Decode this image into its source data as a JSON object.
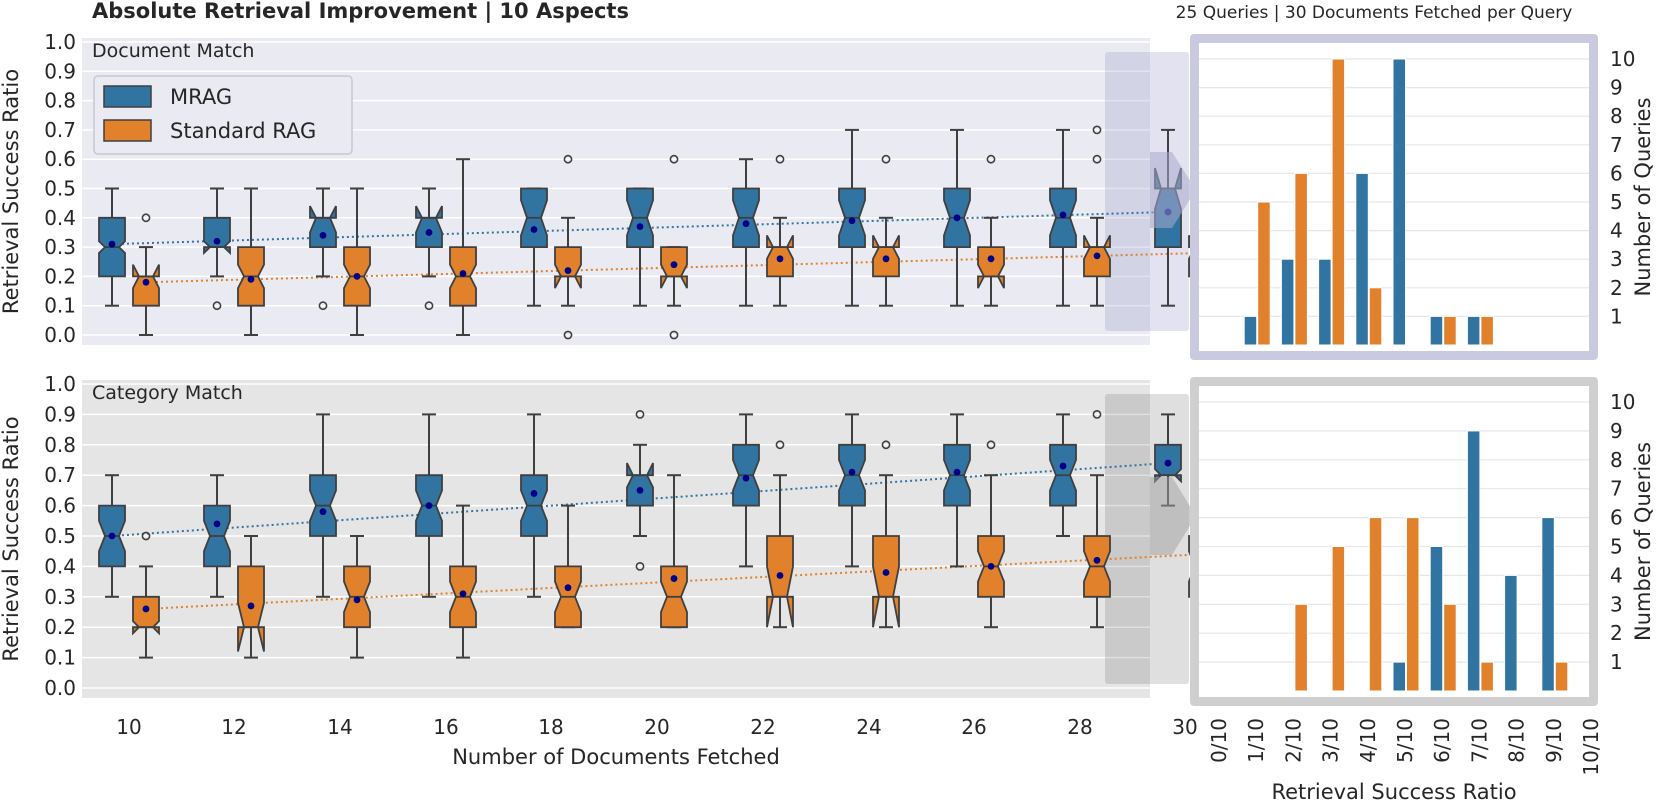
{
  "header": {
    "title": "Absolute Retrieval Improvement | 10 Aspects",
    "hist_title": "25 Queries | 30 Documents Fetched per Query"
  },
  "colors": {
    "mrag": "#3274a1",
    "standard": "#e1812c",
    "mean_marker": "#00008b",
    "panel_top": "#eaeaf2",
    "panel_bottom": "#e5e5e5"
  },
  "legend": {
    "mrag": "MRAG",
    "standard": "Standard RAG"
  },
  "chart_data": [
    {
      "type": "box",
      "panel": "Document Match",
      "ylabel": "Retrieval Success Ratio",
      "xlabel": "Number of Documents Fetched",
      "categories": [
        10,
        12,
        14,
        16,
        18,
        20,
        22,
        24,
        26,
        28,
        30
      ],
      "ylim": [
        0.0,
        1.0
      ],
      "yticks": [
        "0.0",
        "0.1",
        "0.2",
        "0.3",
        "0.4",
        "0.5",
        "0.6",
        "0.7",
        "0.8",
        "0.9",
        "1.0"
      ],
      "highlighted_category": 30,
      "series": [
        {
          "name": "MRAG",
          "boxes": [
            {
              "min": 0.1,
              "q1": 0.2,
              "med": 0.3,
              "q3": 0.4,
              "max": 0.5,
              "mean": 0.31,
              "ci": [
                0.28,
                0.32
              ],
              "outliers": []
            },
            {
              "min": 0.2,
              "q1": 0.3,
              "med": 0.3,
              "q3": 0.4,
              "max": 0.5,
              "mean": 0.32,
              "ci": [
                0.28,
                0.32
              ],
              "outliers": [
                0.1
              ]
            },
            {
              "min": 0.2,
              "q1": 0.3,
              "med": 0.4,
              "q3": 0.4,
              "max": 0.5,
              "mean": 0.34,
              "ci": [
                0.35,
                0.44
              ],
              "outliers": [
                0.1
              ]
            },
            {
              "min": 0.2,
              "q1": 0.3,
              "med": 0.4,
              "q3": 0.4,
              "max": 0.5,
              "mean": 0.35,
              "ci": [
                0.35,
                0.44
              ],
              "outliers": [
                0.1
              ]
            },
            {
              "min": 0.1,
              "q1": 0.3,
              "med": 0.4,
              "q3": 0.5,
              "max": 0.5,
              "mean": 0.36,
              "ci": [
                0.34,
                0.46
              ],
              "outliers": []
            },
            {
              "min": 0.1,
              "q1": 0.3,
              "med": 0.4,
              "q3": 0.5,
              "max": 0.5,
              "mean": 0.37,
              "ci": [
                0.34,
                0.46
              ],
              "outliers": []
            },
            {
              "min": 0.1,
              "q1": 0.3,
              "med": 0.4,
              "q3": 0.5,
              "max": 0.6,
              "mean": 0.38,
              "ci": [
                0.34,
                0.46
              ],
              "outliers": []
            },
            {
              "min": 0.1,
              "q1": 0.3,
              "med": 0.4,
              "q3": 0.5,
              "max": 0.7,
              "mean": 0.39,
              "ci": [
                0.34,
                0.46
              ],
              "outliers": []
            },
            {
              "min": 0.1,
              "q1": 0.3,
              "med": 0.4,
              "q3": 0.5,
              "max": 0.7,
              "mean": 0.4,
              "ci": [
                0.34,
                0.46
              ],
              "outliers": []
            },
            {
              "min": 0.1,
              "q1": 0.3,
              "med": 0.4,
              "q3": 0.5,
              "max": 0.7,
              "mean": 0.41,
              "ci": [
                0.34,
                0.46
              ],
              "outliers": []
            },
            {
              "min": 0.1,
              "q1": 0.3,
              "med": 0.5,
              "q3": 0.5,
              "max": 0.7,
              "mean": 0.42,
              "ci": [
                0.43,
                0.57
              ],
              "outliers": []
            }
          ],
          "trend": [
            0.31,
            0.42
          ]
        },
        {
          "name": "Standard RAG",
          "boxes": [
            {
              "min": 0.0,
              "q1": 0.1,
              "med": 0.2,
              "q3": 0.2,
              "max": 0.3,
              "mean": 0.18,
              "ci": [
                0.16,
                0.24
              ],
              "outliers": [
                0.4
              ]
            },
            {
              "min": 0.0,
              "q1": 0.1,
              "med": 0.2,
              "q3": 0.3,
              "max": 0.5,
              "mean": 0.19,
              "ci": [
                0.16,
                0.24
              ],
              "outliers": []
            },
            {
              "min": 0.0,
              "q1": 0.1,
              "med": 0.2,
              "q3": 0.3,
              "max": 0.5,
              "mean": 0.2,
              "ci": [
                0.16,
                0.24
              ],
              "outliers": []
            },
            {
              "min": 0.0,
              "q1": 0.1,
              "med": 0.2,
              "q3": 0.3,
              "max": 0.6,
              "mean": 0.21,
              "ci": [
                0.16,
                0.24
              ],
              "outliers": []
            },
            {
              "min": 0.1,
              "q1": 0.2,
              "med": 0.2,
              "q3": 0.3,
              "max": 0.4,
              "mean": 0.22,
              "ci": [
                0.16,
                0.24
              ],
              "outliers": [
                0.6,
                0.0
              ]
            },
            {
              "min": 0.1,
              "q1": 0.2,
              "med": 0.2,
              "q3": 0.3,
              "max": 0.3,
              "mean": 0.24,
              "ci": [
                0.16,
                0.24
              ],
              "outliers": [
                0.6,
                0.0
              ]
            },
            {
              "min": 0.1,
              "q1": 0.2,
              "med": 0.3,
              "q3": 0.3,
              "max": 0.4,
              "mean": 0.26,
              "ci": [
                0.26,
                0.34
              ],
              "outliers": [
                0.6
              ]
            },
            {
              "min": 0.1,
              "q1": 0.2,
              "med": 0.3,
              "q3": 0.3,
              "max": 0.4,
              "mean": 0.26,
              "ci": [
                0.26,
                0.34
              ],
              "outliers": [
                0.6
              ]
            },
            {
              "min": 0.1,
              "q1": 0.2,
              "med": 0.2,
              "q3": 0.3,
              "max": 0.4,
              "mean": 0.26,
              "ci": [
                0.16,
                0.24
              ],
              "outliers": [
                0.6
              ]
            },
            {
              "min": 0.1,
              "q1": 0.2,
              "med": 0.3,
              "q3": 0.3,
              "max": 0.4,
              "mean": 0.27,
              "ci": [
                0.26,
                0.34
              ],
              "outliers": [
                0.7,
                0.6
              ]
            },
            {
              "min": 0.1,
              "q1": 0.2,
              "med": 0.3,
              "q3": 0.3,
              "max": 0.4,
              "mean": 0.28,
              "ci": [
                0.26,
                0.34
              ],
              "outliers": [
                0.7,
                0.6
              ]
            }
          ],
          "trend": [
            0.18,
            0.28
          ]
        }
      ]
    },
    {
      "type": "box",
      "panel": "Category Match",
      "ylabel": "Retrieval Success Ratio",
      "xlabel": "Number of Documents Fetched",
      "categories": [
        10,
        12,
        14,
        16,
        18,
        20,
        22,
        24,
        26,
        28,
        30
      ],
      "ylim": [
        0.0,
        1.0
      ],
      "yticks": [
        "0.0",
        "0.1",
        "0.2",
        "0.3",
        "0.4",
        "0.5",
        "0.6",
        "0.7",
        "0.8",
        "0.9",
        "1.0"
      ],
      "xticks": [
        "10",
        "12",
        "14",
        "16",
        "18",
        "20",
        "22",
        "24",
        "26",
        "28",
        "30"
      ],
      "highlighted_category": 30,
      "series": [
        {
          "name": "MRAG",
          "boxes": [
            {
              "min": 0.3,
              "q1": 0.4,
              "med": 0.5,
              "q3": 0.6,
              "max": 0.7,
              "mean": 0.5,
              "ci": [
                0.45,
                0.55
              ],
              "outliers": []
            },
            {
              "min": 0.3,
              "q1": 0.4,
              "med": 0.5,
              "q3": 0.6,
              "max": 0.7,
              "mean": 0.54,
              "ci": [
                0.45,
                0.55
              ],
              "outliers": []
            },
            {
              "min": 0.3,
              "q1": 0.5,
              "med": 0.6,
              "q3": 0.7,
              "max": 0.9,
              "mean": 0.58,
              "ci": [
                0.55,
                0.65
              ],
              "outliers": []
            },
            {
              "min": 0.3,
              "q1": 0.5,
              "med": 0.6,
              "q3": 0.7,
              "max": 0.9,
              "mean": 0.6,
              "ci": [
                0.55,
                0.65
              ],
              "outliers": []
            },
            {
              "min": 0.3,
              "q1": 0.5,
              "med": 0.6,
              "q3": 0.7,
              "max": 0.9,
              "mean": 0.64,
              "ci": [
                0.55,
                0.65
              ],
              "outliers": []
            },
            {
              "min": 0.5,
              "q1": 0.6,
              "med": 0.7,
              "q3": 0.7,
              "max": 0.8,
              "mean": 0.65,
              "ci": [
                0.66,
                0.74
              ],
              "outliers": [
                0.9,
                0.4
              ]
            },
            {
              "min": 0.4,
              "q1": 0.6,
              "med": 0.7,
              "q3": 0.8,
              "max": 0.9,
              "mean": 0.69,
              "ci": [
                0.65,
                0.75
              ],
              "outliers": []
            },
            {
              "min": 0.4,
              "q1": 0.6,
              "med": 0.7,
              "q3": 0.8,
              "max": 0.9,
              "mean": 0.71,
              "ci": [
                0.65,
                0.75
              ],
              "outliers": []
            },
            {
              "min": 0.4,
              "q1": 0.6,
              "med": 0.7,
              "q3": 0.8,
              "max": 0.9,
              "mean": 0.71,
              "ci": [
                0.65,
                0.75
              ],
              "outliers": []
            },
            {
              "min": 0.5,
              "q1": 0.6,
              "med": 0.7,
              "q3": 0.8,
              "max": 0.9,
              "mean": 0.73,
              "ci": [
                0.65,
                0.75
              ],
              "outliers": []
            },
            {
              "min": 0.6,
              "q1": 0.7,
              "med": 0.7,
              "q3": 0.8,
              "max": 0.9,
              "mean": 0.74,
              "ci": [
                0.68,
                0.72
              ],
              "outliers": []
            }
          ],
          "trend": [
            0.5,
            0.74
          ]
        },
        {
          "name": "Standard RAG",
          "boxes": [
            {
              "min": 0.1,
              "q1": 0.2,
              "med": 0.2,
              "q3": 0.3,
              "max": 0.4,
              "mean": 0.26,
              "ci": [
                0.18,
                0.22
              ],
              "outliers": [
                0.5
              ]
            },
            {
              "min": 0.1,
              "q1": 0.2,
              "med": 0.2,
              "q3": 0.4,
              "max": 0.5,
              "mean": 0.27,
              "ci": [
                0.12,
                0.28
              ],
              "outliers": []
            },
            {
              "min": 0.1,
              "q1": 0.2,
              "med": 0.3,
              "q3": 0.4,
              "max": 0.5,
              "mean": 0.29,
              "ci": [
                0.25,
                0.35
              ],
              "outliers": []
            },
            {
              "min": 0.1,
              "q1": 0.2,
              "med": 0.3,
              "q3": 0.4,
              "max": 0.6,
              "mean": 0.31,
              "ci": [
                0.25,
                0.35
              ],
              "outliers": []
            },
            {
              "min": 0.2,
              "q1": 0.2,
              "med": 0.3,
              "q3": 0.4,
              "max": 0.6,
              "mean": 0.33,
              "ci": [
                0.25,
                0.35
              ],
              "outliers": []
            },
            {
              "min": 0.2,
              "q1": 0.2,
              "med": 0.3,
              "q3": 0.4,
              "max": 0.7,
              "mean": 0.36,
              "ci": [
                0.25,
                0.35
              ],
              "outliers": []
            },
            {
              "min": 0.2,
              "q1": 0.3,
              "med": 0.3,
              "q3": 0.5,
              "max": 0.7,
              "mean": 0.37,
              "ci": [
                0.2,
                0.4
              ],
              "outliers": [
                0.8
              ]
            },
            {
              "min": 0.2,
              "q1": 0.3,
              "med": 0.3,
              "q3": 0.5,
              "max": 0.7,
              "mean": 0.38,
              "ci": [
                0.2,
                0.4
              ],
              "outliers": [
                0.8
              ]
            },
            {
              "min": 0.2,
              "q1": 0.3,
              "med": 0.4,
              "q3": 0.5,
              "max": 0.7,
              "mean": 0.4,
              "ci": [
                0.35,
                0.45
              ],
              "outliers": [
                0.8
              ]
            },
            {
              "min": 0.2,
              "q1": 0.3,
              "med": 0.4,
              "q3": 0.5,
              "max": 0.7,
              "mean": 0.42,
              "ci": [
                0.35,
                0.45
              ],
              "outliers": [
                0.9
              ]
            },
            {
              "min": 0.2,
              "q1": 0.3,
              "med": 0.4,
              "q3": 0.5,
              "max": 0.7,
              "mean": 0.44,
              "ci": [
                0.35,
                0.45
              ],
              "outliers": [
                0.9
              ]
            }
          ],
          "trend": [
            0.26,
            0.44
          ]
        }
      ]
    },
    {
      "type": "bar",
      "panel": "Document Match histogram",
      "ylabel": "Number of Queries",
      "categories": [
        "0/10",
        "1/10",
        "2/10",
        "3/10",
        "4/10",
        "5/10",
        "6/10",
        "7/10",
        "8/10",
        "9/10",
        "10/10"
      ],
      "ylim": [
        0,
        10
      ],
      "yticks": [
        "1",
        "2",
        "3",
        "4",
        "5",
        "6",
        "7",
        "8",
        "9",
        "10"
      ],
      "series": [
        {
          "name": "MRAG",
          "values": [
            0,
            1,
            3,
            3,
            6,
            10,
            1,
            1,
            0,
            0,
            0
          ]
        },
        {
          "name": "Standard RAG",
          "values": [
            0,
            5,
            6,
            10,
            2,
            0,
            1,
            1,
            0,
            0,
            0
          ]
        }
      ]
    },
    {
      "type": "bar",
      "panel": "Category Match histogram",
      "ylabel": "Number of Queries",
      "xlabel": "Retrieval Success Ratio",
      "categories": [
        "0/10",
        "1/10",
        "2/10",
        "3/10",
        "4/10",
        "5/10",
        "6/10",
        "7/10",
        "8/10",
        "9/10",
        "10/10"
      ],
      "xticks": [
        "0/10",
        "1/10",
        "2/10",
        "3/10",
        "4/10",
        "5/10",
        "6/10",
        "7/10",
        "8/10",
        "9/10",
        "10/10"
      ],
      "ylim": [
        0,
        10
      ],
      "yticks": [
        "1",
        "2",
        "3",
        "4",
        "5",
        "6",
        "7",
        "8",
        "9",
        "10"
      ],
      "series": [
        {
          "name": "MRAG",
          "values": [
            0,
            0,
            0,
            0,
            0,
            1,
            5,
            9,
            4,
            6,
            0
          ]
        },
        {
          "name": "Standard RAG",
          "values": [
            0,
            0,
            3,
            5,
            6,
            6,
            3,
            1,
            0,
            1,
            0
          ]
        }
      ]
    }
  ]
}
